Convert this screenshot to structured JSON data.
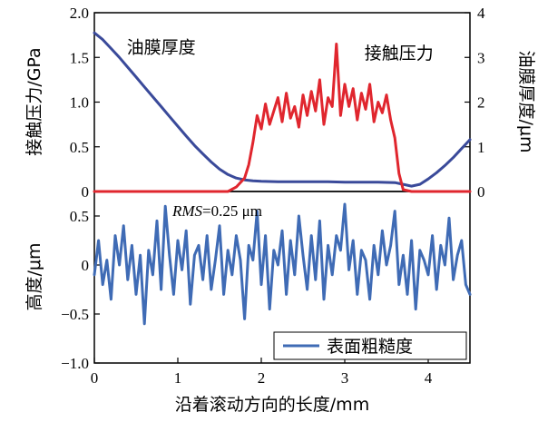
{
  "colors": {
    "film": "#3a4a9a",
    "pressure": "#e0262e",
    "roughness": "#3f6bb5",
    "axis": "#000000"
  },
  "chart_data": [
    {
      "type": "line",
      "panel": "top",
      "xlim": [
        0,
        4.5
      ],
      "ylim_left": [
        0,
        2.0
      ],
      "ylim_right": [
        0,
        4
      ],
      "ylabel_left": "接触压力/GPa",
      "ylabel_right": "油膜厚度/μm",
      "y_ticks_left": [
        {
          "value": 0,
          "label": "0"
        },
        {
          "value": 0.5,
          "label": "0.5"
        },
        {
          "value": 1.0,
          "label": "1.0"
        },
        {
          "value": 1.5,
          "label": "1.5"
        },
        {
          "value": 2.0,
          "label": "2.0"
        }
      ],
      "y_ticks_right": [
        {
          "value": 0,
          "label": "0"
        },
        {
          "value": 1,
          "label": "1"
        },
        {
          "value": 2,
          "label": "2"
        },
        {
          "value": 3,
          "label": "3"
        },
        {
          "value": 4,
          "label": "4"
        }
      ],
      "annotations": [
        {
          "text": "油膜厚度",
          "x": 0.8,
          "y": 1.55
        },
        {
          "text": "接触压力",
          "x": 3.65,
          "y": 1.48
        }
      ],
      "series": [
        {
          "axis": "right",
          "color_key": "film",
          "x": [
            0,
            0.1,
            0.2,
            0.3,
            0.4,
            0.5,
            0.6,
            0.7,
            0.8,
            0.9,
            1.0,
            1.1,
            1.2,
            1.3,
            1.4,
            1.5,
            1.6,
            1.7,
            1.8,
            1.9,
            2.0,
            2.2,
            2.5,
            2.8,
            3.0,
            3.2,
            3.4,
            3.6,
            3.7,
            3.8,
            3.9,
            4.0,
            4.1,
            4.2,
            4.3,
            4.4,
            4.5
          ],
          "values": [
            3.55,
            3.4,
            3.2,
            3.0,
            2.78,
            2.56,
            2.34,
            2.12,
            1.9,
            1.68,
            1.46,
            1.24,
            1.03,
            0.84,
            0.66,
            0.5,
            0.38,
            0.3,
            0.26,
            0.24,
            0.23,
            0.22,
            0.22,
            0.22,
            0.21,
            0.21,
            0.21,
            0.2,
            0.16,
            0.12,
            0.16,
            0.28,
            0.42,
            0.58,
            0.76,
            0.96,
            1.16
          ]
        },
        {
          "axis": "left",
          "color_key": "pressure",
          "x": [
            0,
            1.6,
            1.7,
            1.8,
            1.85,
            1.9,
            1.95,
            2.0,
            2.05,
            2.1,
            2.15,
            2.2,
            2.25,
            2.3,
            2.35,
            2.4,
            2.45,
            2.5,
            2.55,
            2.6,
            2.65,
            2.7,
            2.75,
            2.8,
            2.85,
            2.9,
            2.95,
            3.0,
            3.05,
            3.1,
            3.15,
            3.2,
            3.25,
            3.3,
            3.35,
            3.4,
            3.45,
            3.5,
            3.55,
            3.6,
            3.65,
            3.7,
            3.8,
            4.5
          ],
          "values": [
            0,
            0,
            0.05,
            0.15,
            0.3,
            0.55,
            0.85,
            0.7,
            0.98,
            0.75,
            0.9,
            1.05,
            0.78,
            1.1,
            0.82,
            0.95,
            0.72,
            1.08,
            0.85,
            1.12,
            0.9,
            1.25,
            0.75,
            1.05,
            0.95,
            1.65,
            0.85,
            1.2,
            0.95,
            1.15,
            0.8,
            1.1,
            0.92,
            1.2,
            0.78,
            1.0,
            0.88,
            1.08,
            0.8,
            0.6,
            0.2,
            0.02,
            0,
            0
          ]
        }
      ]
    },
    {
      "type": "line",
      "panel": "bottom",
      "xlim": [
        0,
        4.5
      ],
      "ylim": [
        -1.0,
        0.75
      ],
      "xlabel": "沿着滚动方向的长度/mm",
      "ylabel": "高度/μm",
      "x_ticks": [
        {
          "value": 0,
          "label": "0"
        },
        {
          "value": 1,
          "label": "1"
        },
        {
          "value": 2,
          "label": "2"
        },
        {
          "value": 3,
          "label": "3"
        },
        {
          "value": 4,
          "label": "4"
        }
      ],
      "y_ticks": [
        {
          "value": -1.0,
          "label": "−1.0"
        },
        {
          "value": -0.5,
          "label": "−0.5"
        },
        {
          "value": 0,
          "label": "0"
        },
        {
          "value": 0.5,
          "label": "0.5"
        }
      ],
      "rms_label": "RMS",
      "rms_value": "=0.25 μm",
      "legend": {
        "entries": [
          "表面粗糙度"
        ],
        "placement": "bottom-right"
      },
      "series": [
        {
          "name": "表面粗糙度",
          "color_key": "roughness",
          "x": [
            0,
            0.05,
            0.1,
            0.15,
            0.2,
            0.25,
            0.3,
            0.35,
            0.4,
            0.45,
            0.5,
            0.55,
            0.6,
            0.65,
            0.7,
            0.75,
            0.8,
            0.85,
            0.9,
            0.95,
            1.0,
            1.05,
            1.1,
            1.15,
            1.2,
            1.25,
            1.3,
            1.35,
            1.4,
            1.45,
            1.5,
            1.55,
            1.6,
            1.65,
            1.7,
            1.75,
            1.8,
            1.85,
            1.9,
            1.95,
            2.0,
            2.05,
            2.1,
            2.15,
            2.2,
            2.25,
            2.3,
            2.35,
            2.4,
            2.45,
            2.5,
            2.55,
            2.6,
            2.65,
            2.7,
            2.75,
            2.8,
            2.85,
            2.9,
            2.95,
            3.0,
            3.05,
            3.1,
            3.15,
            3.2,
            3.25,
            3.3,
            3.35,
            3.4,
            3.45,
            3.5,
            3.55,
            3.6,
            3.65,
            3.7,
            3.75,
            3.8,
            3.85,
            3.9,
            3.95,
            4.0,
            4.05,
            4.1,
            4.15,
            4.2,
            4.25,
            4.3,
            4.35,
            4.4,
            4.45,
            4.5
          ],
          "values": [
            -0.1,
            0.25,
            -0.2,
            0.05,
            -0.35,
            0.3,
            0.0,
            0.4,
            -0.15,
            0.2,
            -0.3,
            0.1,
            -0.6,
            0.15,
            -0.1,
            0.45,
            -0.25,
            0.6,
            0.1,
            -0.3,
            0.25,
            -0.05,
            0.35,
            -0.4,
            0.1,
            0.2,
            -0.15,
            0.3,
            -0.25,
            0.05,
            0.4,
            -0.3,
            0.15,
            -0.1,
            0.3,
            0.05,
            -0.55,
            0.2,
            0.05,
            0.55,
            -0.2,
            0.3,
            -0.45,
            0.15,
            0.0,
            0.35,
            -0.3,
            0.25,
            -0.1,
            0.5,
            0.1,
            -0.25,
            0.3,
            -0.15,
            0.45,
            -0.35,
            0.2,
            -0.1,
            0.3,
            0.15,
            0.62,
            -0.05,
            0.25,
            -0.3,
            0.15,
            0.05,
            -0.35,
            0.2,
            -0.1,
            0.35,
            0.0,
            0.2,
            0.55,
            -0.2,
            0.1,
            -0.3,
            0.25,
            -0.45,
            0.15,
            0.05,
            -0.1,
            0.3,
            -0.25,
            0.2,
            0.0,
            0.48,
            -0.15,
            0.1,
            0.25,
            -0.2,
            -0.3
          ]
        }
      ]
    }
  ]
}
